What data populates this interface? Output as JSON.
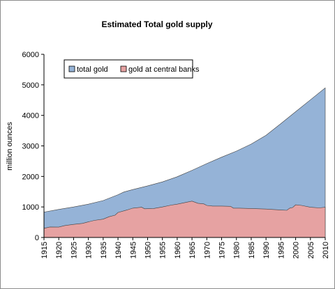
{
  "chart_data": {
    "type": "area",
    "title": "Estimated Total gold supply",
    "xlabel": "",
    "ylabel": "million ounces",
    "xlim": [
      1915,
      2010
    ],
    "ylim": [
      0,
      6000
    ],
    "x_ticks": [
      1915,
      1920,
      1925,
      1930,
      1935,
      1940,
      1945,
      1950,
      1955,
      1960,
      1965,
      1970,
      1975,
      1980,
      1985,
      1990,
      1995,
      2000,
      2005,
      2010
    ],
    "y_ticks": [
      0,
      1000,
      2000,
      3000,
      4000,
      5000,
      6000
    ],
    "grid": false,
    "legend_position": "top-left",
    "series": [
      {
        "name": "total gold",
        "color": "#95b3d7",
        "points": [
          [
            1915,
            830
          ],
          [
            1920,
            920
          ],
          [
            1925,
            1000
          ],
          [
            1930,
            1090
          ],
          [
            1935,
            1210
          ],
          [
            1940,
            1400
          ],
          [
            1942,
            1490
          ],
          [
            1945,
            1570
          ],
          [
            1950,
            1690
          ],
          [
            1955,
            1820
          ],
          [
            1960,
            1990
          ],
          [
            1965,
            2200
          ],
          [
            1970,
            2420
          ],
          [
            1975,
            2630
          ],
          [
            1980,
            2830
          ],
          [
            1985,
            3060
          ],
          [
            1990,
            3350
          ],
          [
            1995,
            3730
          ],
          [
            2000,
            4120
          ],
          [
            2005,
            4510
          ],
          [
            2010,
            4900
          ]
        ]
      },
      {
        "name": "gold at central banks",
        "color": "#e6a2a2",
        "points": [
          [
            1915,
            300
          ],
          [
            1917,
            345
          ],
          [
            1920,
            340
          ],
          [
            1922,
            390
          ],
          [
            1925,
            430
          ],
          [
            1928,
            460
          ],
          [
            1930,
            510
          ],
          [
            1932,
            560
          ],
          [
            1935,
            600
          ],
          [
            1937,
            680
          ],
          [
            1939,
            730
          ],
          [
            1940,
            820
          ],
          [
            1943,
            900
          ],
          [
            1945,
            960
          ],
          [
            1948,
            990
          ],
          [
            1949,
            940
          ],
          [
            1952,
            950
          ],
          [
            1955,
            1000
          ],
          [
            1958,
            1060
          ],
          [
            1960,
            1090
          ],
          [
            1963,
            1150
          ],
          [
            1965,
            1190
          ],
          [
            1967,
            1120
          ],
          [
            1969,
            1100
          ],
          [
            1970,
            1050
          ],
          [
            1972,
            1030
          ],
          [
            1975,
            1030
          ],
          [
            1978,
            1020
          ],
          [
            1979,
            960
          ],
          [
            1981,
            960
          ],
          [
            1985,
            950
          ],
          [
            1990,
            930
          ],
          [
            1995,
            900
          ],
          [
            1997,
            890
          ],
          [
            1998,
            960
          ],
          [
            1999,
            980
          ],
          [
            2000,
            1070
          ],
          [
            2002,
            1050
          ],
          [
            2005,
            990
          ],
          [
            2008,
            970
          ],
          [
            2010,
            990
          ]
        ]
      }
    ]
  }
}
